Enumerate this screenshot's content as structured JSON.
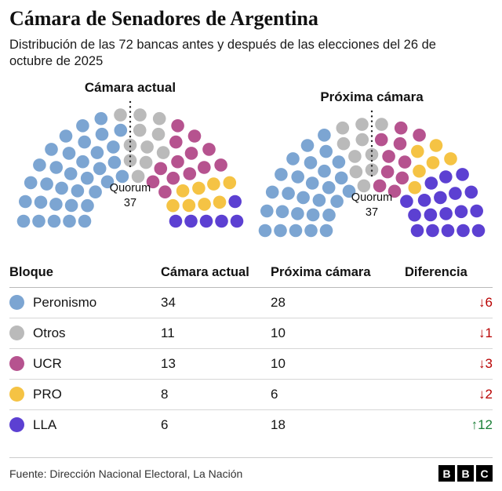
{
  "header": {
    "title": "Cámara de Senadores de Argentina",
    "subtitle": "Distribución de las 72 bancas antes y después de las elecciones del 26 de octubre de 2025"
  },
  "charts": [
    {
      "title": "Cámara actual",
      "quorum_label": "Quorum",
      "quorum_value": "37",
      "seats_key": "current"
    },
    {
      "title": "Próxima cámara",
      "quorum_label": "Quorum",
      "quorum_value": "37",
      "seats_key": "next"
    }
  ],
  "chart_data": {
    "type": "parliament",
    "total_seats": 72,
    "quorum": 37,
    "rows_per_arc": [
      10,
      13,
      15,
      16,
      18
    ],
    "series": [
      {
        "name": "Peronismo",
        "color": "#7CA5D2",
        "current": 34,
        "next": 28,
        "diff": "↓6",
        "diff_direction": "down"
      },
      {
        "name": "Otros",
        "color": "#bababa",
        "current": 11,
        "next": 10,
        "diff": "↓1",
        "diff_direction": "down"
      },
      {
        "name": "UCR",
        "color": "#b6538f",
        "current": 13,
        "next": 10,
        "diff": "↓3",
        "diff_direction": "down"
      },
      {
        "name": "PRO",
        "color": "#f5c344",
        "current": 8,
        "next": 6,
        "diff": "↓2",
        "diff_direction": "down"
      },
      {
        "name": "LLA",
        "color": "#5c40d2",
        "current": 6,
        "next": 18,
        "diff": "↑12",
        "diff_direction": "up"
      }
    ],
    "diff_colors": {
      "down": "#b80000",
      "up": "#1b7f37"
    }
  },
  "table": {
    "headers": [
      "Bloque",
      "Cámara actual",
      "Próxima cámara",
      "Diferencia"
    ]
  },
  "footer": {
    "source": "Fuente: Dirección Nacional Electoral, La Nación",
    "logo_letters": [
      "B",
      "B",
      "C"
    ]
  }
}
